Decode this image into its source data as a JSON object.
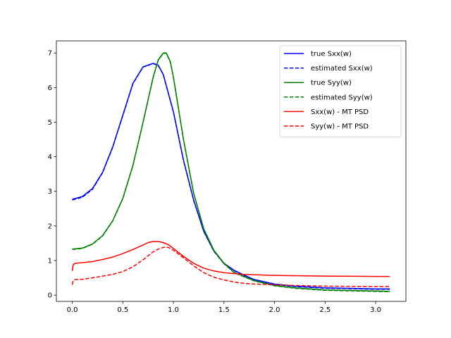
{
  "chart_data": {
    "type": "line",
    "title": "",
    "xlabel": "",
    "ylabel": "",
    "xlim": [
      -0.157,
      3.299
    ],
    "ylim": [
      -0.18,
      7.35
    ],
    "xticks": [
      0.0,
      0.5,
      1.0,
      1.5,
      2.0,
      2.5,
      3.0
    ],
    "xtick_labels": [
      "0.0",
      "0.5",
      "1.0",
      "1.5",
      "2.0",
      "2.5",
      "3.0"
    ],
    "yticks": [
      0,
      1,
      2,
      3,
      4,
      5,
      6,
      7
    ],
    "ytick_labels": [
      "0",
      "1",
      "2",
      "3",
      "4",
      "5",
      "6",
      "7"
    ],
    "grid": false,
    "legend_position": "upper right",
    "series": [
      {
        "name": "true Sxx(w)",
        "color": "#0000ff",
        "dash": "solid",
        "x": [
          0.0,
          0.1,
          0.2,
          0.3,
          0.4,
          0.5,
          0.6,
          0.7,
          0.8,
          0.85,
          0.9,
          1.0,
          1.1,
          1.2,
          1.3,
          1.4,
          1.5,
          1.6,
          1.7,
          1.8,
          2.0,
          2.2,
          2.5,
          3.0,
          3.14
        ],
        "y": [
          2.77,
          2.85,
          3.08,
          3.55,
          4.28,
          5.2,
          6.12,
          6.6,
          6.7,
          6.65,
          6.38,
          5.3,
          3.9,
          2.75,
          1.85,
          1.28,
          0.92,
          0.72,
          0.58,
          0.45,
          0.32,
          0.26,
          0.21,
          0.18,
          0.18
        ]
      },
      {
        "name": "estimated Sxx(w)",
        "color": "#0000ff",
        "dash": "dashed",
        "x": [
          0.0,
          0.1,
          0.2,
          0.3,
          0.4,
          0.5,
          0.6,
          0.7,
          0.8,
          0.85,
          0.9,
          1.0,
          1.1,
          1.2,
          1.3,
          1.4,
          1.5,
          1.6,
          1.7,
          1.8,
          2.0,
          2.2,
          2.5,
          3.0,
          3.14
        ],
        "y": [
          2.75,
          2.83,
          3.06,
          3.54,
          4.27,
          5.19,
          6.11,
          6.59,
          6.69,
          6.64,
          6.37,
          5.29,
          3.89,
          2.74,
          1.84,
          1.27,
          0.91,
          0.71,
          0.57,
          0.44,
          0.31,
          0.25,
          0.2,
          0.17,
          0.17
        ]
      },
      {
        "name": "true Syy(w)",
        "color": "#008000",
        "dash": "solid",
        "x": [
          0.0,
          0.1,
          0.2,
          0.3,
          0.4,
          0.5,
          0.6,
          0.7,
          0.8,
          0.85,
          0.9,
          0.93,
          0.97,
          1.0,
          1.1,
          1.2,
          1.3,
          1.4,
          1.5,
          1.6,
          1.8,
          2.0,
          2.2,
          2.5,
          3.0,
          3.14
        ],
        "y": [
          1.33,
          1.36,
          1.48,
          1.72,
          2.15,
          2.8,
          3.75,
          5.0,
          6.3,
          6.8,
          7.0,
          7.0,
          6.75,
          6.3,
          4.5,
          2.95,
          1.92,
          1.3,
          0.92,
          0.66,
          0.42,
          0.28,
          0.21,
          0.15,
          0.12,
          0.11
        ]
      },
      {
        "name": "estimated Syy(w)",
        "color": "#008000",
        "dash": "dashed",
        "x": [
          0.0,
          0.1,
          0.2,
          0.3,
          0.4,
          0.5,
          0.6,
          0.7,
          0.8,
          0.85,
          0.9,
          0.93,
          0.97,
          1.0,
          1.1,
          1.2,
          1.3,
          1.4,
          1.5,
          1.6,
          1.8,
          2.0,
          2.2,
          2.5,
          3.0,
          3.14
        ],
        "y": [
          1.32,
          1.35,
          1.47,
          1.71,
          2.14,
          2.79,
          3.74,
          4.99,
          6.29,
          6.79,
          6.99,
          6.99,
          6.74,
          6.29,
          4.49,
          2.94,
          1.91,
          1.29,
          0.91,
          0.65,
          0.41,
          0.27,
          0.2,
          0.14,
          0.11,
          0.1
        ]
      },
      {
        "name": "Sxx(w) - MT PSD",
        "color": "#ff0000",
        "dash": "solid",
        "x": [
          0.0,
          0.01,
          0.03,
          0.1,
          0.2,
          0.3,
          0.4,
          0.5,
          0.6,
          0.7,
          0.75,
          0.8,
          0.85,
          0.9,
          0.95,
          1.0,
          1.1,
          1.2,
          1.3,
          1.4,
          1.5,
          1.7,
          2.0,
          2.5,
          3.0,
          3.14
        ],
        "y": [
          0.7,
          0.88,
          0.92,
          0.94,
          0.97,
          1.03,
          1.1,
          1.2,
          1.32,
          1.45,
          1.52,
          1.55,
          1.55,
          1.52,
          1.46,
          1.35,
          1.12,
          0.92,
          0.78,
          0.7,
          0.65,
          0.6,
          0.57,
          0.55,
          0.54,
          0.54
        ]
      },
      {
        "name": "Syy(w) - MT PSD",
        "color": "#ff0000",
        "dash": "dashed",
        "x": [
          0.0,
          0.01,
          0.03,
          0.1,
          0.2,
          0.3,
          0.4,
          0.5,
          0.6,
          0.7,
          0.8,
          0.85,
          0.9,
          0.95,
          1.0,
          1.1,
          1.2,
          1.3,
          1.4,
          1.5,
          1.6,
          1.7,
          1.8,
          2.0,
          2.2,
          2.5,
          3.0,
          3.14
        ],
        "y": [
          0.3,
          0.42,
          0.45,
          0.46,
          0.5,
          0.55,
          0.6,
          0.68,
          0.82,
          1.02,
          1.25,
          1.33,
          1.38,
          1.38,
          1.3,
          1.08,
          0.85,
          0.65,
          0.52,
          0.44,
          0.38,
          0.34,
          0.32,
          0.3,
          0.28,
          0.26,
          0.25,
          0.25
        ]
      }
    ]
  }
}
